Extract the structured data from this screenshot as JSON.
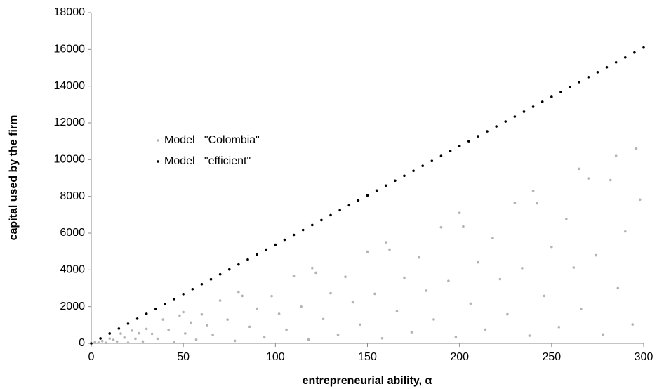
{
  "chart_data": {
    "type": "scatter",
    "xlabel": "entrepreneurial ability, α",
    "ylabel": "capital used by the firm",
    "xlim": [
      0,
      300
    ],
    "xticks": [
      0,
      50,
      100,
      150,
      200,
      250,
      300
    ],
    "ylim": [
      0,
      18000
    ],
    "yticks": [
      0,
      2000,
      4000,
      6000,
      8000,
      10000,
      12000,
      14000,
      16000,
      18000
    ],
    "legend": "upper left",
    "series": [
      {
        "name": "Model   \"Colombia\"",
        "color": "#b3b3b3",
        "x": [
          2,
          4,
          6,
          8,
          10,
          12,
          14,
          16,
          18,
          20,
          22,
          24,
          26,
          28,
          30,
          33,
          36,
          39,
          42,
          45,
          48,
          51,
          54,
          57,
          60,
          63,
          66,
          70,
          74,
          78,
          82,
          86,
          90,
          94,
          98,
          102,
          106,
          110,
          114,
          118,
          122,
          126,
          130,
          134,
          138,
          142,
          146,
          150,
          154,
          158,
          162,
          166,
          170,
          174,
          178,
          182,
          186,
          190,
          194,
          198,
          202,
          206,
          210,
          214,
          218,
          222,
          226,
          230,
          234,
          238,
          242,
          246,
          250,
          254,
          258,
          262,
          266,
          270,
          274,
          278,
          282,
          286,
          290,
          294,
          298,
          296,
          285,
          265,
          240,
          200,
          160,
          120,
          80,
          50
        ],
        "y": [
          63,
          42,
          126,
          28,
          263,
          189,
          98,
          532,
          315,
          35,
          693,
          252,
          546,
          98,
          788,
          520,
          252,
          1297,
          735,
          79,
          1512,
          536,
          1134,
          200,
          1575,
          992,
          462,
          2328,
          1295,
          137,
          2583,
          903,
          1890,
          329,
          2573,
          1607,
          742,
          3658,
          1995,
          207,
          3843,
          1323,
          2730,
          469,
          3623,
          2237,
          1022,
          4988,
          2695,
          277,
          5103,
          1743,
          3570,
          609,
          4673,
          2867,
          1302,
          6318,
          3395,
          347,
          6363,
          2163,
          4410,
          749,
          5723,
          3497,
          1582,
          7648,
          4095,
          417,
          7623,
          2583,
          5250,
          889,
          6773,
          4127,
          1862,
          8978,
          4795,
          487,
          8883,
          3003,
          6090,
          1029,
          7823,
          10600,
          10200,
          9500,
          8300,
          7100,
          5500,
          4100,
          2800,
          1700
        ]
      },
      {
        "name": "Model   \"efficient\"",
        "color": "#000000",
        "x": [
          0,
          5,
          10,
          15,
          20,
          25,
          30,
          35,
          40,
          45,
          50,
          55,
          60,
          65,
          70,
          75,
          80,
          85,
          90,
          95,
          100,
          105,
          110,
          115,
          120,
          125,
          130,
          135,
          140,
          145,
          150,
          155,
          160,
          165,
          170,
          175,
          180,
          185,
          190,
          195,
          200,
          205,
          210,
          215,
          220,
          225,
          230,
          235,
          240,
          245,
          250,
          255,
          260,
          265,
          270,
          275,
          280,
          285,
          290,
          295,
          300
        ],
        "y": [
          0,
          268,
          537,
          805,
          1073,
          1342,
          1610,
          1878,
          2147,
          2415,
          2683,
          2952,
          3220,
          3489,
          3757,
          4025,
          4294,
          4562,
          4830,
          5099,
          5367,
          5635,
          5904,
          6172,
          6440,
          6709,
          6977,
          7245,
          7514,
          7782,
          8050,
          8319,
          8587,
          8856,
          9124,
          9392,
          9661,
          9929,
          10197,
          10466,
          10734,
          11002,
          11271,
          11539,
          11807,
          12076,
          12344,
          12612,
          12881,
          13149,
          13417,
          13686,
          13954,
          14222,
          14491,
          14759,
          15027,
          15296,
          15564,
          15832,
          16101
        ]
      }
    ]
  }
}
